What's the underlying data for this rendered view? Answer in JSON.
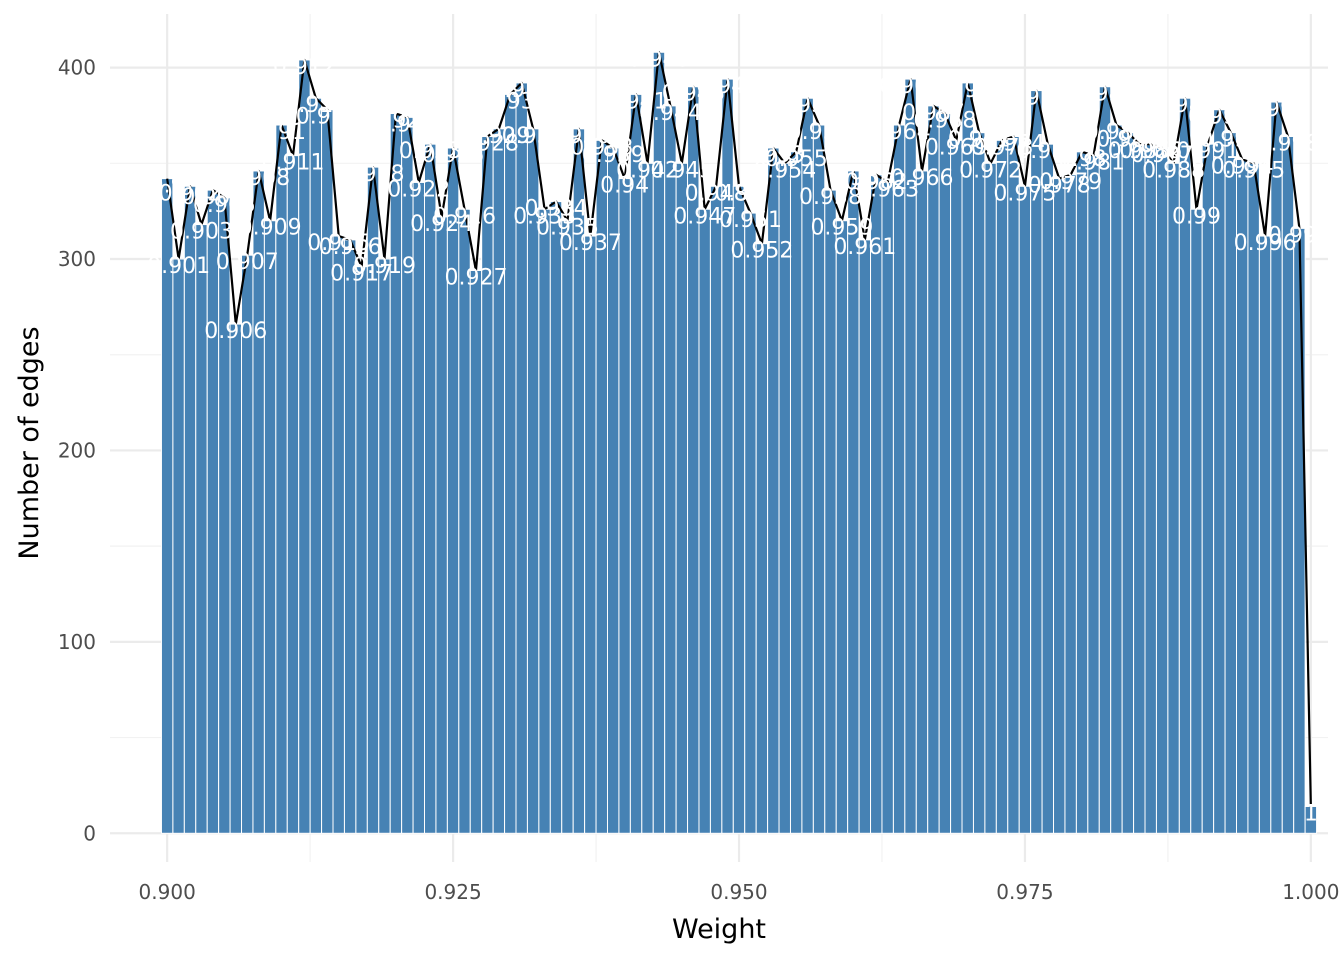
{
  "chart_data": {
    "type": "bar",
    "xlabel": "Weight",
    "ylabel": "Number of edges",
    "xlim": [
      0.895,
      1.0015
    ],
    "ylim": [
      -15,
      428
    ],
    "xticks": [
      "0.900",
      "0.925",
      "0.950",
      "0.975",
      "1.000"
    ],
    "yticks": [
      "0",
      "100",
      "200",
      "300",
      "400"
    ],
    "grid": true,
    "legend": "none",
    "bar_color": "#4682B4",
    "line_color": "#000000",
    "label_color": "#ffffff",
    "x": [
      0.9,
      0.901,
      0.902,
      0.903,
      0.904,
      0.905,
      0.906,
      0.907,
      0.908,
      0.909,
      0.91,
      0.911,
      0.912,
      0.913,
      0.914,
      0.915,
      0.916,
      0.917,
      0.918,
      0.919,
      0.92,
      0.921,
      0.922,
      0.923,
      0.924,
      0.925,
      0.926,
      0.927,
      0.928,
      0.929,
      0.93,
      0.931,
      0.932,
      0.933,
      0.934,
      0.935,
      0.936,
      0.937,
      0.938,
      0.939,
      0.94,
      0.941,
      0.942,
      0.943,
      0.944,
      0.945,
      0.946,
      0.947,
      0.948,
      0.949,
      0.95,
      0.951,
      0.952,
      0.953,
      0.954,
      0.955,
      0.956,
      0.957,
      0.958,
      0.959,
      0.96,
      0.961,
      0.962,
      0.963,
      0.964,
      0.965,
      0.966,
      0.967,
      0.968,
      0.969,
      0.97,
      0.971,
      0.972,
      0.973,
      0.974,
      0.975,
      0.976,
      0.977,
      0.978,
      0.979,
      0.98,
      0.981,
      0.982,
      0.983,
      0.984,
      0.985,
      0.986,
      0.987,
      0.988,
      0.989,
      0.99,
      0.991,
      0.992,
      0.993,
      0.994,
      0.995,
      0.996,
      0.997,
      0.998,
      0.999,
      1.0
    ],
    "values": [
      342,
      300,
      338,
      318,
      336,
      332,
      266,
      302,
      346,
      320,
      370,
      354,
      404,
      384,
      378,
      312,
      310,
      296,
      348,
      300,
      376,
      374,
      340,
      360,
      322,
      358,
      326,
      294,
      364,
      368,
      386,
      392,
      368,
      326,
      330,
      320,
      368,
      312,
      362,
      358,
      342,
      386,
      350,
      408,
      380,
      350,
      390,
      326,
      338,
      394,
      338,
      324,
      308,
      358,
      350,
      356,
      384,
      370,
      336,
      320,
      346,
      310,
      344,
      340,
      370,
      394,
      346,
      380,
      376,
      362,
      392,
      366,
      350,
      362,
      364,
      338,
      388,
      360,
      342,
      344,
      356,
      354,
      390,
      370,
      366,
      360,
      360,
      358,
      350,
      384,
      326,
      360,
      378,
      366,
      352,
      350,
      312,
      382,
      364,
      316,
      14
    ],
    "labels": [
      "0.9",
      "0.901",
      "0.902",
      "0.903",
      "0.904",
      "0.905",
      "0.906",
      "0.907",
      "0.908",
      "0.909",
      "0.91",
      "0.911",
      "0.912",
      "0.913",
      "0.914",
      "0.915",
      "0.916",
      "0.917",
      "0.918",
      "0.919",
      "0.92",
      "0.921",
      "0.922",
      "0.923",
      "0.924",
      "0.925",
      "0.926",
      "0.927",
      "0.928",
      "0.929",
      "0.93",
      "0.931",
      "0.932",
      "0.933",
      "0.934",
      "0.935",
      "0.936",
      "0.937",
      "0.938",
      "0.939",
      "0.94",
      "0.941",
      "0.942",
      "0.943",
      "0.944",
      "0.945",
      "0.946",
      "0.947",
      "0.948",
      "0.949",
      "0.95",
      "0.951",
      "0.952",
      "0.953",
      "0.954",
      "0.955",
      "0.956",
      "0.957",
      "0.958",
      "0.959",
      "0.96",
      "0.961",
      "0.962",
      "0.963",
      "0.964",
      "0.965",
      "0.966",
      "0.967",
      "0.968",
      "0.969",
      "0.97",
      "0.971",
      "0.972",
      "0.973",
      "0.974",
      "0.975",
      "0.976",
      "0.977",
      "0.978",
      "0.979",
      "0.98",
      "0.981",
      "0.982",
      "0.983",
      "0.984",
      "0.985",
      "0.986",
      "0.987",
      "0.988",
      "0.989",
      "0.99",
      "0.991",
      "0.992",
      "0.993",
      "0.994",
      "0.995",
      "0.996",
      "0.997",
      "0.998",
      "0.999",
      "1"
    ]
  }
}
